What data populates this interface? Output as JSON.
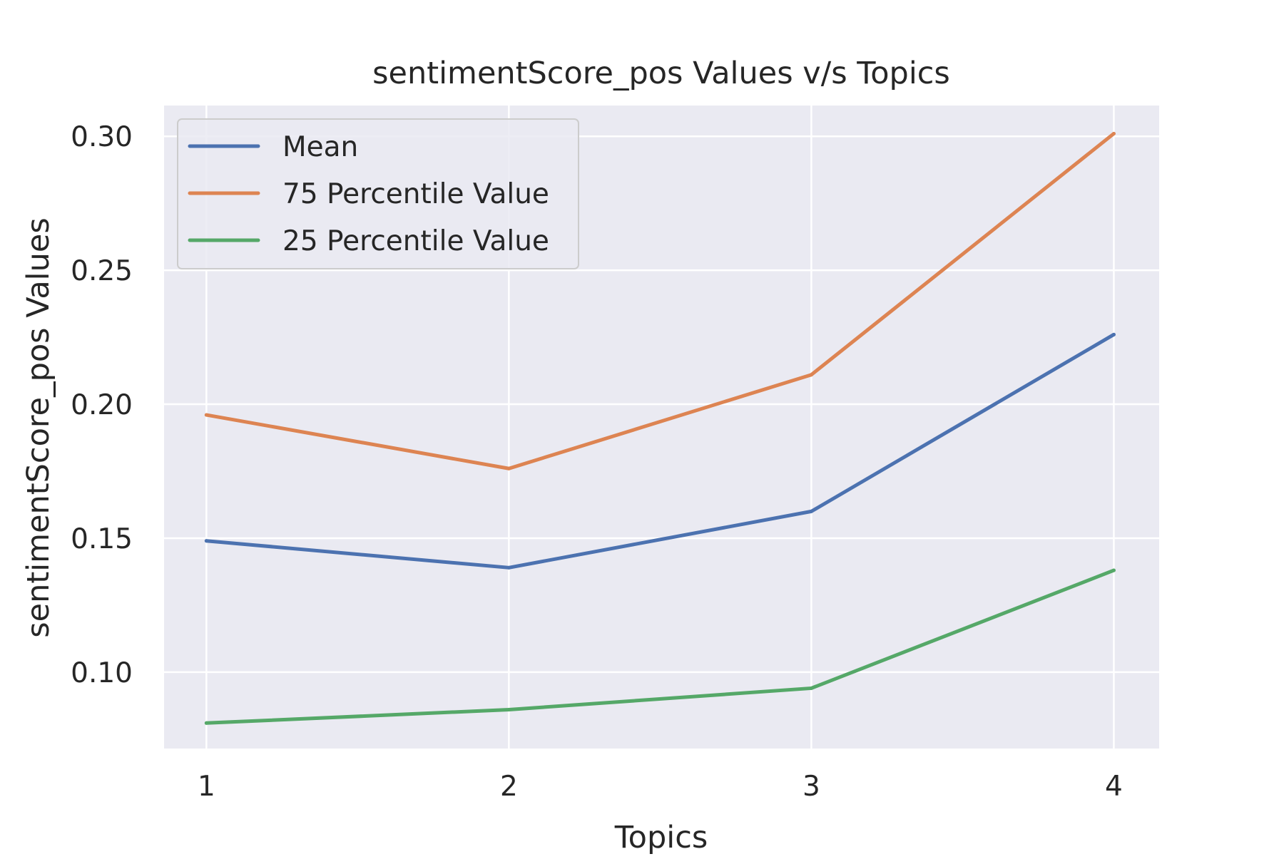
{
  "chart_data": {
    "type": "line",
    "title": "sentimentScore_pos Values v/s Topics",
    "xlabel": "Topics",
    "ylabel": "sentimentScore_pos Values",
    "x": [
      1,
      2,
      3,
      4
    ],
    "x_tick_labels": [
      "1",
      "2",
      "3",
      "4"
    ],
    "xlim": [
      0.86,
      4.15
    ],
    "ylim": [
      0.0715,
      0.3115
    ],
    "y_ticks": [
      0.1,
      0.15,
      0.2,
      0.25,
      0.3
    ],
    "y_tick_labels": [
      "0.10",
      "0.15",
      "0.20",
      "0.25",
      "0.30"
    ],
    "grid": true,
    "legend_position": "upper-left",
    "background_color": "#eaeaf2",
    "grid_color": "#ffffff",
    "series": [
      {
        "name": "Mean",
        "color": "#4c72b0",
        "values": [
          0.149,
          0.139,
          0.16,
          0.226
        ]
      },
      {
        "name": "75 Percentile Value",
        "color": "#dd8452",
        "values": [
          0.196,
          0.176,
          0.211,
          0.301
        ]
      },
      {
        "name": "25 Percentile Value",
        "color": "#55a868",
        "values": [
          0.081,
          0.086,
          0.094,
          0.138
        ]
      }
    ]
  }
}
